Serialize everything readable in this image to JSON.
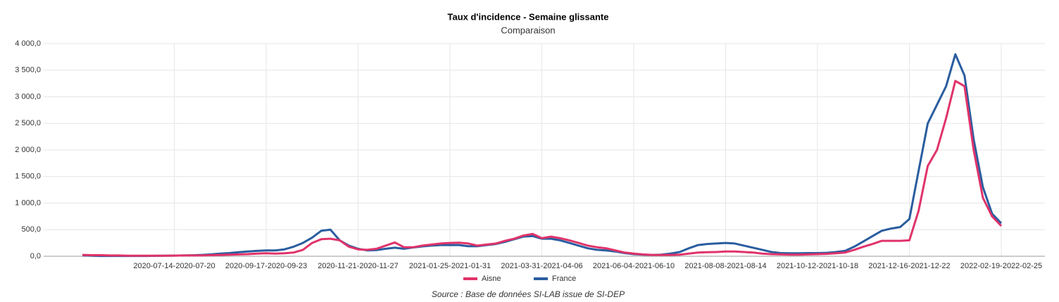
{
  "chart_data": {
    "type": "line",
    "title": "Taux d'incidence - Semaine glissante",
    "subtitle": "Comparaison",
    "source": "Source : Base de données SI-LAB issue de SI-DEP",
    "categories": [
      null,
      null,
      null,
      null,
      null,
      null,
      null,
      null,
      null,
      null,
      "2020-07-14-2020-07-20",
      null,
      null,
      null,
      null,
      null,
      null,
      null,
      null,
      null,
      "2020-09-17-2020-09-23",
      null,
      null,
      null,
      null,
      null,
      null,
      null,
      null,
      null,
      "2020-11-21-2020-11-27",
      null,
      null,
      null,
      null,
      null,
      null,
      null,
      null,
      null,
      "2021-01-25-2021-01-31",
      null,
      null,
      null,
      null,
      null,
      null,
      null,
      null,
      null,
      "2021-03-31-2021-04-06",
      null,
      null,
      null,
      null,
      null,
      null,
      null,
      null,
      null,
      "2021-06-04-2021-06-10",
      null,
      null,
      null,
      null,
      null,
      null,
      null,
      null,
      null,
      "2021-08-08-2021-08-14",
      null,
      null,
      null,
      null,
      null,
      null,
      null,
      null,
      null,
      "2021-10-12-2021-10-18",
      null,
      null,
      null,
      null,
      null,
      null,
      null,
      null,
      null,
      "2021-12-16-2021-12-22",
      null,
      null,
      null,
      null,
      null,
      null,
      null,
      null,
      null,
      "2022-02-19-2022-02-25"
    ],
    "series": [
      {
        "name": "Aisne",
        "color": "#e0336a",
        "values": [
          25,
          20,
          20,
          15,
          15,
          10,
          10,
          10,
          10,
          10,
          12,
          15,
          15,
          15,
          20,
          25,
          30,
          35,
          40,
          50,
          55,
          50,
          55,
          70,
          120,
          250,
          320,
          330,
          300,
          180,
          130,
          120,
          140,
          200,
          260,
          170,
          170,
          200,
          220,
          240,
          250,
          255,
          240,
          200,
          220,
          240,
          290,
          330,
          390,
          420,
          340,
          370,
          340,
          300,
          250,
          200,
          170,
          150,
          110,
          70,
          50,
          35,
          25,
          25,
          25,
          30,
          50,
          70,
          75,
          80,
          90,
          90,
          80,
          70,
          50,
          40,
          35,
          30,
          30,
          35,
          40,
          45,
          55,
          70,
          120,
          180,
          230,
          290,
          290,
          290,
          300,
          850,
          1700,
          2000,
          2600,
          3300,
          3200,
          2000,
          1100,
          750,
          570
        ]
      },
      {
        "name": "France",
        "color": "#2a5d9f",
        "values": [
          15,
          10,
          5,
          5,
          5,
          5,
          5,
          5,
          8,
          10,
          12,
          15,
          18,
          25,
          35,
          50,
          60,
          75,
          90,
          100,
          110,
          110,
          130,
          180,
          250,
          350,
          480,
          500,
          300,
          200,
          140,
          110,
          115,
          140,
          160,
          140,
          165,
          185,
          200,
          210,
          210,
          210,
          190,
          190,
          210,
          230,
          270,
          320,
          370,
          380,
          330,
          330,
          300,
          250,
          200,
          150,
          120,
          110,
          90,
          60,
          40,
          30,
          25,
          30,
          50,
          80,
          150,
          210,
          230,
          240,
          250,
          240,
          200,
          160,
          120,
          80,
          60,
          55,
          55,
          60,
          60,
          65,
          80,
          100,
          180,
          280,
          380,
          480,
          520,
          550,
          700,
          1600,
          2500,
          2850,
          3200,
          3800,
          3400,
          2200,
          1300,
          800,
          620
        ]
      }
    ],
    "ylim": [
      0,
      4000
    ],
    "yticks": [
      {
        "value": 0,
        "label": "0,0"
      },
      {
        "value": 500,
        "label": "500,0"
      },
      {
        "value": 1000,
        "label": "1 000,0"
      },
      {
        "value": 1500,
        "label": "1 500,0"
      },
      {
        "value": 2000,
        "label": "2 000,0"
      },
      {
        "value": 2500,
        "label": "2 500,0"
      },
      {
        "value": 3000,
        "label": "3 000,0"
      },
      {
        "value": 3500,
        "label": "3 500,0"
      },
      {
        "value": 4000,
        "label": "4 000,0"
      }
    ],
    "grid": true,
    "legend": "bottom"
  }
}
